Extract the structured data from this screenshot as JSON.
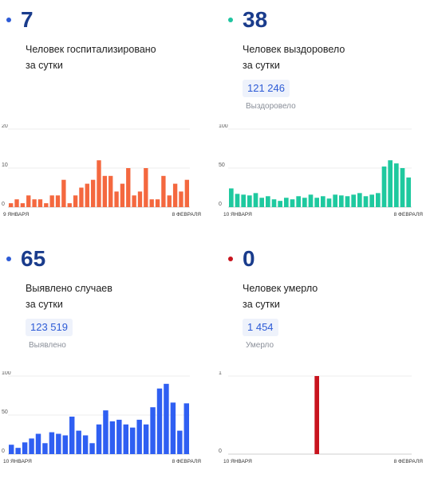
{
  "panels": [
    {
      "value": "7",
      "dot_color": "#2d5bd6",
      "desc_line1": "Человек госпитализировано",
      "desc_line2": "за сутки",
      "pill_value": "",
      "pill_label": "",
      "bar_color": "#f4683f"
    },
    {
      "value": "38",
      "dot_color": "#1fc4a0",
      "desc_line1": "Человек выздоровело",
      "desc_line2": "за сутки",
      "pill_value": "121 246",
      "pill_label": "Выздоровело",
      "bar_color": "#1fc99f"
    },
    {
      "value": "65",
      "dot_color": "#2d5bd6",
      "desc_line1": "Выявлено случаев",
      "desc_line2": "за сутки",
      "pill_value": "123 519",
      "pill_label": "Выявлено",
      "bar_color": "#2f5ff2"
    },
    {
      "value": "0",
      "dot_color": "#c8141e",
      "desc_line1": "Человек умерло",
      "desc_line2": "за сутки",
      "pill_value": "1 454",
      "pill_label": "Умерло",
      "bar_color": "#c8141e"
    }
  ],
  "chart_data": [
    {
      "type": "bar",
      "x_start_label": "9 ЯНВАРЯ",
      "x_end_label": "8 ФЕВРАЛЯ",
      "ylim": [
        0,
        20
      ],
      "yticks": [
        "0",
        "10",
        "20"
      ],
      "grid": true,
      "values": [
        1,
        2,
        1,
        3,
        2,
        2,
        1,
        3,
        3,
        7,
        1,
        3,
        5,
        6,
        7,
        12,
        8,
        8,
        4,
        6,
        10,
        3,
        4,
        10,
        2,
        2,
        8,
        3,
        6,
        4,
        7
      ]
    },
    {
      "type": "bar",
      "x_start_label": "10 ЯНВАРЯ",
      "x_end_label": "8 ФЕВРАЛЯ",
      "ylim": [
        0,
        100
      ],
      "yticks": [
        "0",
        "50",
        "100"
      ],
      "grid": true,
      "values": [
        24,
        17,
        16,
        15,
        18,
        12,
        14,
        10,
        8,
        12,
        10,
        14,
        12,
        16,
        12,
        14,
        11,
        16,
        15,
        14,
        16,
        18,
        14,
        16,
        18,
        52,
        60,
        56,
        50,
        38
      ]
    },
    {
      "type": "bar",
      "x_start_label": "10 ЯНВАРЯ",
      "x_end_label": "8 ФЕВРАЛЯ",
      "ylim": [
        0,
        100
      ],
      "yticks": [
        "0",
        "50",
        "100"
      ],
      "grid": true,
      "values": [
        12,
        8,
        15,
        20,
        26,
        14,
        28,
        26,
        24,
        48,
        30,
        24,
        14,
        38,
        56,
        42,
        44,
        38,
        34,
        44,
        38,
        60,
        84,
        90,
        66,
        30,
        65
      ]
    },
    {
      "type": "bar",
      "x_start_label": "10 ЯНВАРЯ",
      "x_end_label": "8 ФЕВРАЛЯ",
      "ylim": [
        0,
        1
      ],
      "yticks": [
        "0",
        "1"
      ],
      "grid": true,
      "values": [
        0,
        0,
        0,
        0,
        0,
        0,
        0,
        0,
        0,
        0,
        0,
        0,
        0,
        0,
        1,
        0,
        0,
        0,
        0,
        0,
        0,
        0,
        0,
        0,
        0,
        0,
        0,
        0,
        0,
        0
      ]
    }
  ]
}
